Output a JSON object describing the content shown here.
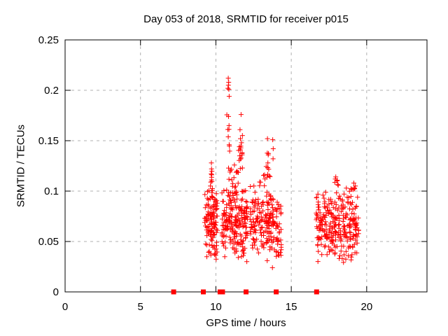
{
  "chart_data": {
    "type": "scatter",
    "title": "Day 053 of 2018, SRMTID for receiver p015",
    "xlabel": "GPS time / hours",
    "ylabel": "SRMTID / TECUs",
    "xlim": [
      0,
      24
    ],
    "ylim": [
      0,
      0.25
    ],
    "xticks": {
      "values": [
        0,
        5,
        10,
        15,
        20
      ],
      "labels": [
        "0",
        "5",
        "10",
        "15",
        "20"
      ]
    },
    "yticks": {
      "values": [
        0,
        0.05,
        0.1,
        0.15,
        0.2,
        0.25
      ],
      "labels": [
        "0",
        "0.05",
        "0.1",
        "0.15",
        "0.2",
        "0.25"
      ]
    },
    "grid": true,
    "legend_position": "none",
    "colors": {
      "points": "#ff0000",
      "grid": "#b0b0b0",
      "axis": "#000000",
      "text": "#000000",
      "background": "#ffffff"
    },
    "marker": {
      "shape": "plus",
      "size": 7,
      "stroke_width": 1
    },
    "zero_markers": {
      "shape": "filled-square",
      "size": 7,
      "y": 0,
      "x": [
        7.2,
        9.17,
        10.28,
        10.44,
        12.0,
        14.0,
        16.68
      ]
    },
    "notable_points": [
      [
        10.82,
        0.212
      ],
      [
        10.85,
        0.208
      ],
      [
        10.83,
        0.205
      ],
      [
        10.8,
        0.202
      ],
      [
        10.86,
        0.201
      ],
      [
        10.88,
        0.194
      ],
      [
        10.84,
        0.174
      ],
      [
        10.87,
        0.165
      ],
      [
        10.88,
        0.146
      ],
      [
        11.67,
        0.176
      ],
      [
        11.6,
        0.161
      ],
      [
        11.63,
        0.152
      ],
      [
        11.7,
        0.148
      ],
      [
        11.56,
        0.144
      ],
      [
        11.62,
        0.141
      ],
      [
        11.74,
        0.136
      ],
      [
        9.7,
        0.128
      ],
      [
        9.71,
        0.122
      ],
      [
        9.69,
        0.117
      ],
      [
        13.42,
        0.152
      ],
      [
        13.77,
        0.151
      ],
      [
        13.8,
        0.142
      ],
      [
        13.47,
        0.136
      ],
      [
        13.79,
        0.132
      ],
      [
        12.05,
        0.03
      ],
      [
        13.4,
        0.031
      ],
      [
        13.75,
        0.024
      ],
      [
        12.52,
        0.105
      ],
      [
        12.9,
        0.109
      ],
      [
        17.95,
        0.114
      ],
      [
        17.92,
        0.112
      ],
      [
        18.02,
        0.11
      ],
      [
        19.15,
        0.108
      ],
      [
        18.65,
        0.103
      ],
      [
        19.25,
        0.105
      ]
    ],
    "cluster_distributions": [
      {
        "x0": 9.25,
        "x1": 10.12,
        "n": 130,
        "y0": 0.03,
        "y1": 0.105,
        "dist": "tri"
      },
      {
        "x0": 9.62,
        "x1": 9.78,
        "n": 9,
        "y0": 0.085,
        "y1": 0.125,
        "dist": "tri"
      },
      {
        "x0": 10.4,
        "x1": 12.1,
        "n": 215,
        "y0": 0.03,
        "y1": 0.11,
        "dist": "tri"
      },
      {
        "x0": 10.72,
        "x1": 10.95,
        "n": 6,
        "y0": 0.118,
        "y1": 0.185,
        "dist": "tri"
      },
      {
        "x0": 10.7,
        "x1": 11.8,
        "n": 14,
        "y0": 0.106,
        "y1": 0.128,
        "dist": "tri"
      },
      {
        "x0": 11.5,
        "x1": 11.8,
        "n": 10,
        "y0": 0.128,
        "y1": 0.158,
        "dist": "tri"
      },
      {
        "x0": 12.25,
        "x1": 14.35,
        "n": 195,
        "y0": 0.032,
        "y1": 0.112,
        "dist": "tri"
      },
      {
        "x0": 12.95,
        "x1": 13.6,
        "n": 7,
        "y0": 0.108,
        "y1": 0.124,
        "dist": "tri"
      },
      {
        "x0": 13.3,
        "x1": 13.9,
        "n": 8,
        "y0": 0.112,
        "y1": 0.14,
        "dist": "tri"
      },
      {
        "x0": 14.0,
        "x1": 14.38,
        "n": 9,
        "y0": 0.025,
        "y1": 0.05,
        "dist": "tri"
      },
      {
        "x0": 16.65,
        "x1": 19.5,
        "n": 275,
        "y0": 0.028,
        "y1": 0.106,
        "dist": "tri"
      },
      {
        "x0": 17.8,
        "x1": 18.15,
        "n": 5,
        "y0": 0.098,
        "y1": 0.114,
        "dist": "tri"
      },
      {
        "x0": 18.95,
        "x1": 19.35,
        "n": 5,
        "y0": 0.094,
        "y1": 0.108,
        "dist": "tri"
      }
    ],
    "seed": 7
  }
}
